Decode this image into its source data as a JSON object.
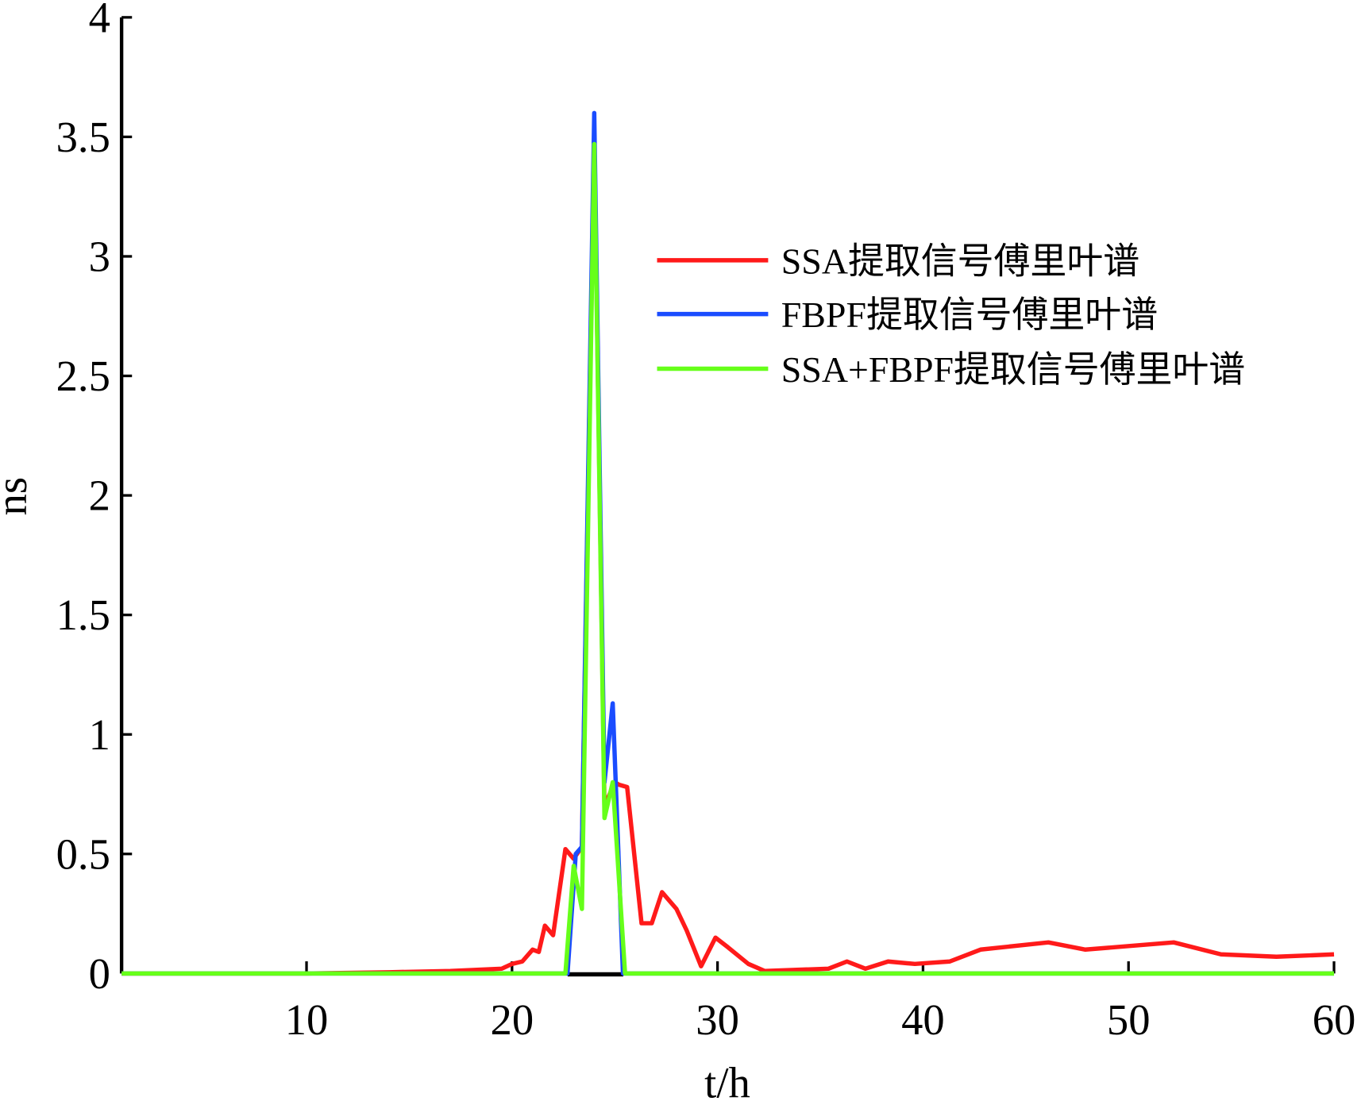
{
  "chart_data": {
    "type": "line",
    "title": "",
    "xlabel": "t/h",
    "ylabel": "ns",
    "xlim": [
      1,
      60
    ],
    "ylim": [
      0,
      4
    ],
    "xticks": [
      10,
      20,
      30,
      40,
      50,
      60
    ],
    "xtick_labels": [
      "10",
      "20",
      "30",
      "40",
      "50",
      "60"
    ],
    "yticks": [
      0,
      0.5,
      1,
      1.5,
      2,
      2.5,
      3,
      3.5,
      4
    ],
    "ytick_labels": [
      "0",
      "0.5",
      "1",
      "1.5",
      "2",
      "2.5",
      "3",
      "3.5",
      "4"
    ],
    "grid": false,
    "legend_position": "upper-right",
    "series": [
      {
        "name": "SSA提取信号傅里叶谱",
        "color": "#ff1a1a",
        "x": [
          1,
          10,
          14,
          17,
          19.5,
          20,
          20.5,
          21,
          21.3,
          21.6,
          22,
          22.6,
          23,
          23.4,
          24,
          24.5,
          25,
          25.2,
          25.6,
          26.3,
          26.8,
          27.3,
          28,
          28.5,
          29.2,
          29.9,
          30.5,
          31.5,
          32.3,
          35.4,
          36.3,
          37.2,
          38.3,
          39.6,
          41.3,
          42.8,
          46.1,
          47.9,
          52.2,
          54.5,
          57.2,
          60
        ],
        "y": [
          0,
          0,
          0.005,
          0.01,
          0.02,
          0.04,
          0.05,
          0.1,
          0.09,
          0.2,
          0.16,
          0.52,
          0.48,
          0.53,
          3.5,
          0.7,
          0.8,
          0.79,
          0.78,
          0.21,
          0.21,
          0.34,
          0.27,
          0.18,
          0.03,
          0.15,
          0.11,
          0.04,
          0.01,
          0.02,
          0.05,
          0.02,
          0.05,
          0.04,
          0.05,
          0.1,
          0.13,
          0.1,
          0.13,
          0.08,
          0.07,
          0.08
        ]
      },
      {
        "name": "FBPF提取信号傅里叶谱",
        "color": "#1a4cff",
        "x": [
          1,
          22.7,
          23.1,
          23.4,
          24,
          24.5,
          24.9,
          25.4,
          60
        ],
        "y": [
          0,
          0,
          0.5,
          0.53,
          3.6,
          0.8,
          1.13,
          0,
          0
        ]
      },
      {
        "name": "SSA+FBPF提取信号傅里叶谱",
        "color": "#66ff1a",
        "x": [
          1,
          22.6,
          23,
          23.4,
          24,
          24.5,
          24.9,
          25.5,
          60
        ],
        "y": [
          0,
          0,
          0.45,
          0.27,
          3.47,
          0.65,
          0.8,
          0,
          0
        ]
      }
    ]
  }
}
